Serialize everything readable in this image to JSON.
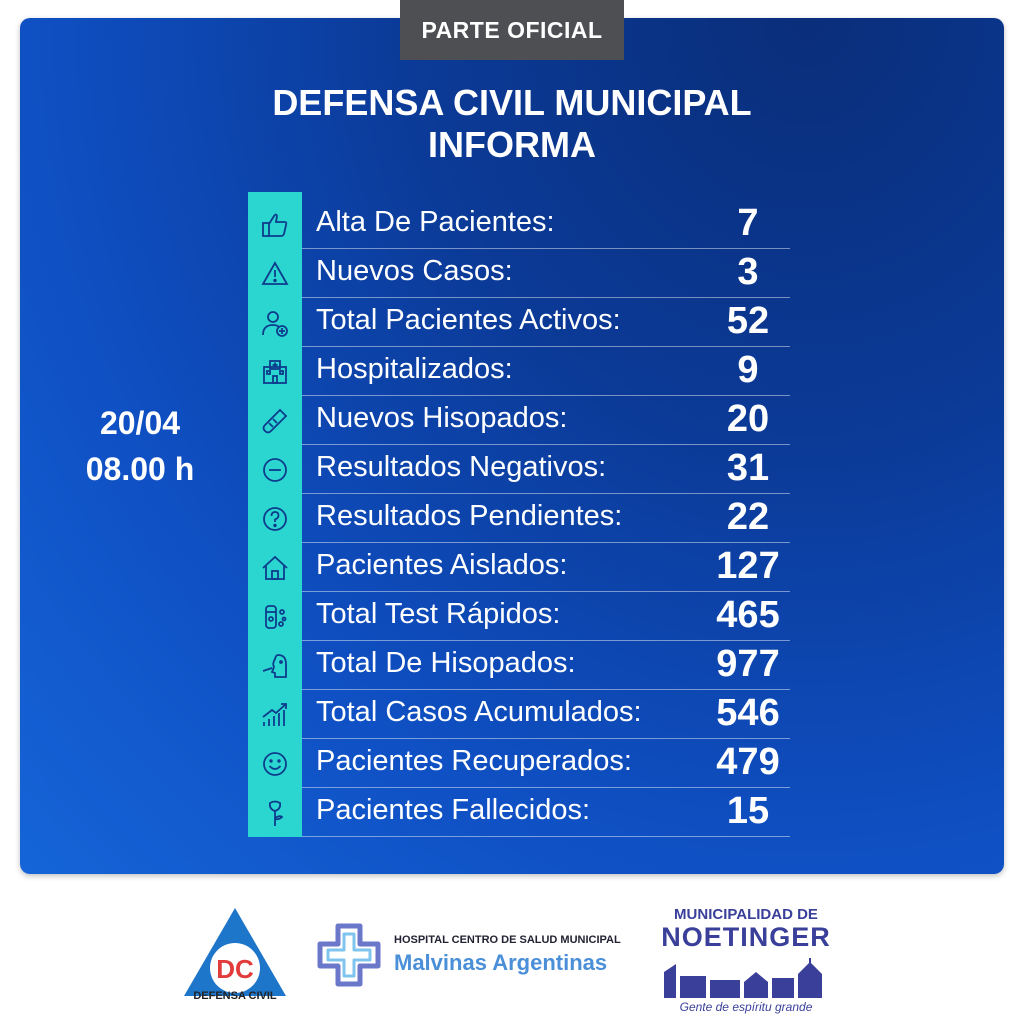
{
  "header": {
    "tag": "PARTE OFICIAL",
    "title_line1": "DEFENSA CIVIL MUNICIPAL",
    "title_line2": "INFORMA"
  },
  "report": {
    "date": "20/04",
    "time": "08.00 h"
  },
  "stats": [
    {
      "icon": "thumbs-up-icon",
      "label": "Alta De Pacientes:",
      "value": "7"
    },
    {
      "icon": "warning-icon",
      "label": "Nuevos Casos:",
      "value": "3"
    },
    {
      "icon": "patient-icon",
      "label": "Total Pacientes Activos:",
      "value": "52"
    },
    {
      "icon": "hospital-icon",
      "label": "Hospitalizados:",
      "value": "9"
    },
    {
      "icon": "swab-icon",
      "label": "Nuevos Hisopados:",
      "value": "20"
    },
    {
      "icon": "minus-circle-icon",
      "label": "Resultados Negativos:",
      "value": "31"
    },
    {
      "icon": "question-circle-icon",
      "label": "Resultados Pendientes:",
      "value": "22"
    },
    {
      "icon": "house-icon",
      "label": "Pacientes Aislados:",
      "value": "127"
    },
    {
      "icon": "test-tube-icon",
      "label": "Total Test Rápidos:",
      "value": "465"
    },
    {
      "icon": "nasal-swab-icon",
      "label": "Total De Hisopados:",
      "value": "977"
    },
    {
      "icon": "growth-chart-icon",
      "label": "Total Casos Acumulados:",
      "value": "546"
    },
    {
      "icon": "smile-icon",
      "label": "Pacientes Recuperados:",
      "value": "479"
    },
    {
      "icon": "rose-icon",
      "label": "Pacientes Fallecidos:",
      "value": "15"
    }
  ],
  "footer": {
    "dc_letters": "DC",
    "dc_caption": "DEFENSA CIVIL",
    "hospital_top": "HOSPITAL CENTRO DE SALUD MUNICIPAL",
    "hospital_name": "Malvinas Argentinas",
    "muni_top": "MUNICIPALIDAD DE",
    "muni_name": "NOETINGER",
    "muni_slogan": "Gente de espíritu grande"
  },
  "colors": {
    "panel_dark": "#0b3a97",
    "panel_light": "#1565d8",
    "icon_column": "#2cd6d0",
    "tag_bg": "#4d4f53",
    "dc_red": "#e23b3b",
    "dc_blue": "#1d76c9"
  }
}
